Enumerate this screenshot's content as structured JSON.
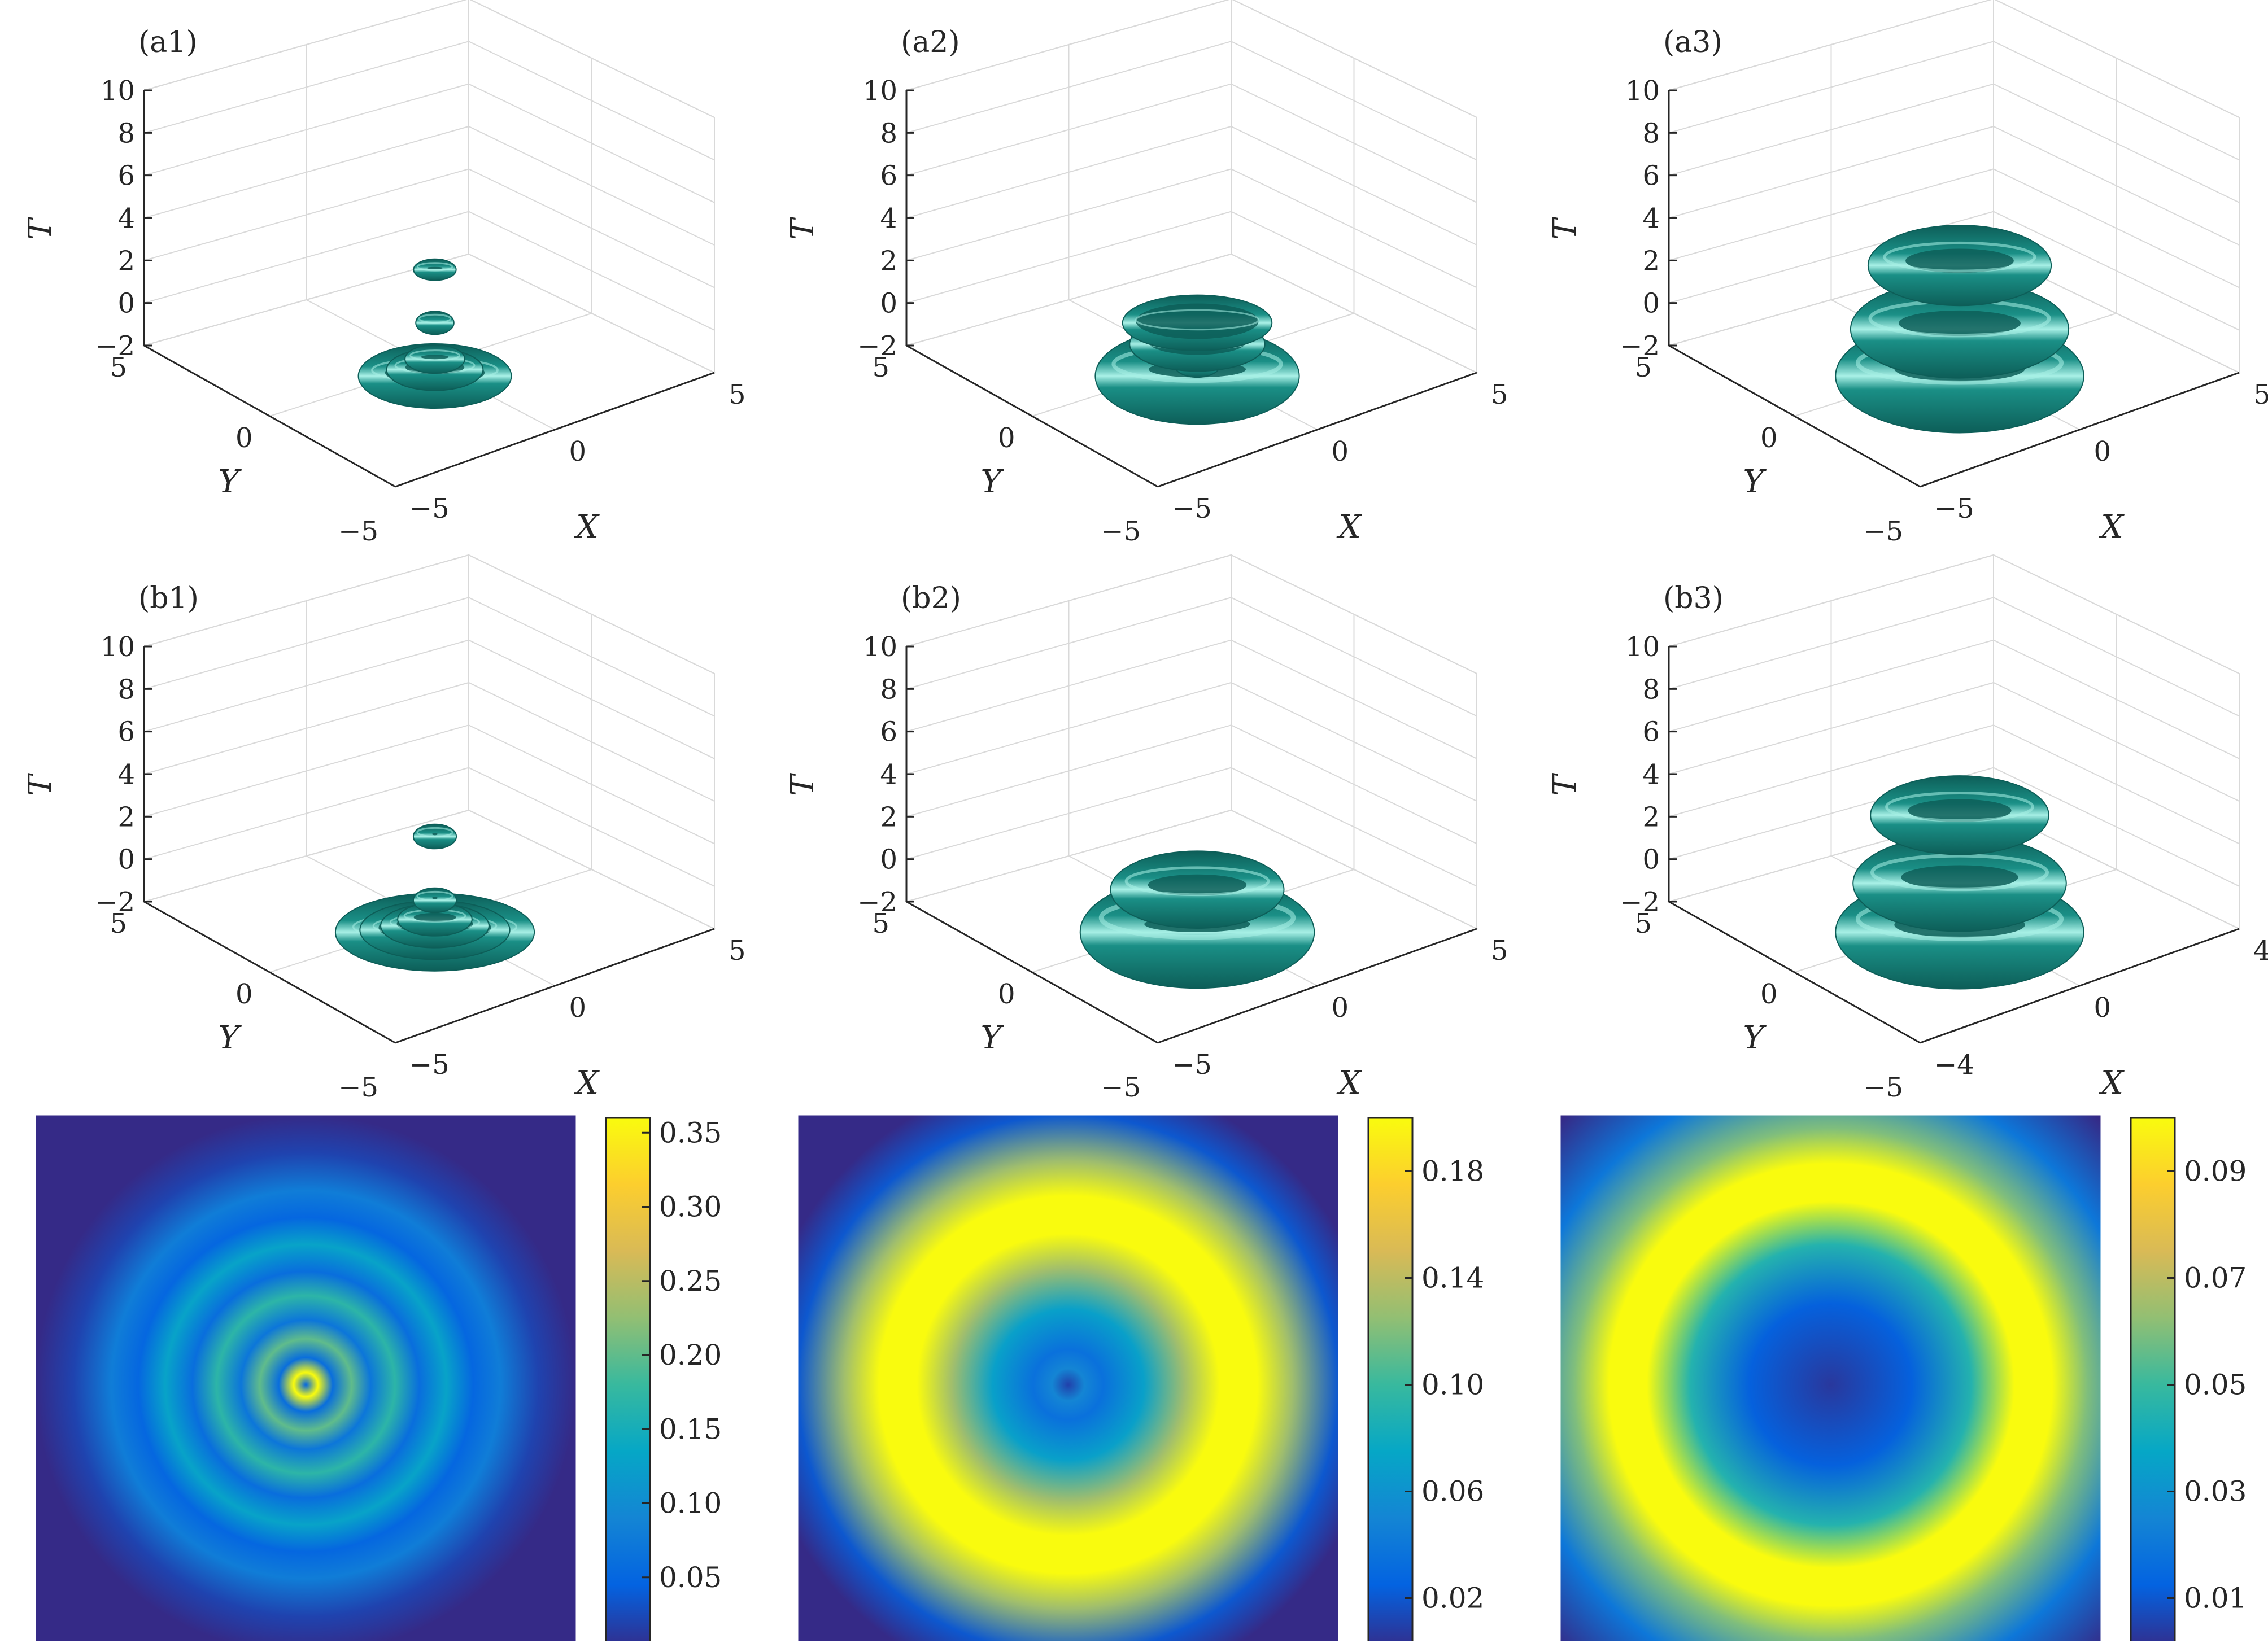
{
  "colors": {
    "surface": "#1a8f86",
    "surface_dark": "#0d5e58",
    "surface_light": "#a8f0e6",
    "grid": "#d9d9d9",
    "axis": "#262626",
    "parula": [
      "#352a87",
      "#0363e1",
      "#1485d4",
      "#06a7c6",
      "#38b99e",
      "#92bf73",
      "#d9ba56",
      "#fcce2e",
      "#f9fb0e"
    ]
  },
  "chart_data": [
    {
      "id": "a1",
      "type": "surface3d",
      "panel_label": "(a1)",
      "xlabel": "X",
      "ylabel": "Y",
      "zlabel": "T",
      "xticks": [
        "−5",
        "0",
        "5"
      ],
      "yticks": [
        "−5",
        "0",
        "5"
      ],
      "zticks": [
        "10",
        "8",
        "6",
        "4",
        "2",
        "0",
        "−2"
      ],
      "zlim": [
        -2,
        10
      ],
      "xlim": [
        -5,
        5
      ],
      "ylim": [
        -5,
        5
      ],
      "grid": true,
      "tori": [
        {
          "r": 2.6,
          "z": 0,
          "tube": 0.5
        },
        {
          "r": 1.6,
          "z": 0.3,
          "tube": 0.35
        },
        {
          "r": 0.9,
          "z": 0.8,
          "tube": 0.3
        },
        {
          "r": 0.4,
          "z": 2.5,
          "tube": 0.35
        },
        {
          "r": 0.6,
          "z": 5,
          "tube": 0.25
        }
      ]
    },
    {
      "id": "a2",
      "type": "surface3d",
      "panel_label": "(a2)",
      "xlabel": "X",
      "ylabel": "Y",
      "zlabel": "T",
      "xticks": [
        "−5",
        "0",
        "5"
      ],
      "yticks": [
        "−5",
        "0",
        "5"
      ],
      "zticks": [
        "10",
        "8",
        "6",
        "4",
        "2",
        "0",
        "−2"
      ],
      "zlim": [
        -2,
        10
      ],
      "xlim": [
        -5,
        5
      ],
      "ylim": [
        -5,
        5
      ],
      "grid": true,
      "tori": [
        {
          "r": 3.1,
          "z": 0,
          "tube": 1.0
        },
        {
          "r": 2.4,
          "z": 1.5,
          "tube": 0.35
        },
        {
          "r": 2.8,
          "z": 2.5,
          "tube": 0.25
        },
        {
          "r": 0.6,
          "z": 0.5,
          "tube": 0.3
        }
      ]
    },
    {
      "id": "a3",
      "type": "surface3d",
      "panel_label": "(a3)",
      "xlabel": "X",
      "ylabel": "Y",
      "zlabel": "T",
      "xticks": [
        "−5",
        "0",
        "5"
      ],
      "yticks": [
        "−5",
        "0",
        "5"
      ],
      "zticks": [
        "10",
        "8",
        "6",
        "4",
        "2",
        "0",
        "−2"
      ],
      "zlim": [
        -2,
        10
      ],
      "xlim": [
        -5,
        5
      ],
      "ylim": [
        -5,
        5
      ],
      "grid": true,
      "tori": [
        {
          "r": 3.9,
          "z": 0,
          "tube": 1.1
        },
        {
          "r": 3.5,
          "z": 2.2,
          "tube": 0.9
        },
        {
          "r": 1.5,
          "z": 2.0,
          "tube": 0.5
        },
        {
          "r": 3.0,
          "z": 5.2,
          "tube": 0.7
        }
      ]
    },
    {
      "id": "b1",
      "type": "surface3d",
      "panel_label": "(b1)",
      "xlabel": "X",
      "ylabel": "Y",
      "zlabel": "T",
      "xticks": [
        "−5",
        "0",
        "5"
      ],
      "yticks": [
        "−5",
        "0",
        "5"
      ],
      "zticks": [
        "10",
        "8",
        "6",
        "4",
        "2",
        "0",
        "−2"
      ],
      "zlim": [
        -2,
        10
      ],
      "xlim": [
        -5,
        5
      ],
      "ylim": [
        -5,
        5
      ],
      "grid": true,
      "tori": [
        {
          "r": 3.6,
          "z": 0,
          "tube": 0.45
        },
        {
          "r": 2.7,
          "z": 0.1,
          "tube": 0.35
        },
        {
          "r": 1.9,
          "z": 0.3,
          "tube": 0.3
        },
        {
          "r": 1.2,
          "z": 0.6,
          "tube": 0.3
        },
        {
          "r": 0.5,
          "z": 1.5,
          "tube": 0.35
        },
        {
          "r": 0.5,
          "z": 4.5,
          "tube": 0.35
        }
      ]
    },
    {
      "id": "b2",
      "type": "surface3d",
      "panel_label": "(b2)",
      "xlabel": "X",
      "ylabel": "Y",
      "zlabel": "T",
      "xticks": [
        "−5",
        "0",
        "5"
      ],
      "yticks": [
        "−5",
        "0",
        "5"
      ],
      "zticks": [
        "10",
        "8",
        "6",
        "4",
        "2",
        "0",
        "−2"
      ],
      "zlim": [
        -2,
        10
      ],
      "xlim": [
        -5,
        5
      ],
      "ylim": [
        -5,
        5
      ],
      "grid": true,
      "tori": [
        {
          "r": 3.5,
          "z": 0,
          "tube": 1.2
        },
        {
          "r": 2.8,
          "z": 2.0,
          "tube": 0.7
        }
      ]
    },
    {
      "id": "b3",
      "type": "surface3d",
      "panel_label": "(b3)",
      "xlabel": "X",
      "ylabel": "Y",
      "zlabel": "T",
      "xticks": [
        "−4",
        "0",
        "4"
      ],
      "yticks": [
        "−5",
        "0",
        "5"
      ],
      "zticks": [
        "10",
        "8",
        "6",
        "4",
        "2",
        "0",
        "−2"
      ],
      "zlim": [
        -2,
        10
      ],
      "xlim": [
        -5,
        5
      ],
      "ylim": [
        -5,
        5
      ],
      "grid": true,
      "tori": [
        {
          "r": 3.9,
          "z": 0,
          "tube": 1.1
        },
        {
          "r": 3.4,
          "z": 2.3,
          "tube": 0.9
        },
        {
          "r": 1.5,
          "z": 2.2,
          "tube": 0.5
        },
        {
          "r": 2.9,
          "z": 5.5,
          "tube": 0.7
        }
      ]
    },
    {
      "id": "c1",
      "type": "heatmap",
      "colorbar_ticks": [
        "0.35",
        "0.30",
        "0.25",
        "0.20",
        "0.15",
        "0.10",
        "0.05"
      ],
      "colorbar_tick_values": [
        0.35,
        0.3,
        0.25,
        0.2,
        0.15,
        0.1,
        0.05
      ],
      "clim": [
        0,
        0.36
      ],
      "rings": [
        {
          "r": 0,
          "v": 0.05
        },
        {
          "r": 0.045,
          "v": 0.36
        },
        {
          "r": 0.1,
          "v": 0.06
        },
        {
          "r": 0.17,
          "v": 0.2
        },
        {
          "r": 0.24,
          "v": 0.07
        },
        {
          "r": 0.33,
          "v": 0.17
        },
        {
          "r": 0.42,
          "v": 0.06
        },
        {
          "r": 0.52,
          "v": 0.13
        },
        {
          "r": 0.62,
          "v": 0.05
        },
        {
          "r": 0.72,
          "v": 0.08
        },
        {
          "r": 0.86,
          "v": 0.02
        },
        {
          "r": 1.0,
          "v": 0.0
        }
      ]
    },
    {
      "id": "c2",
      "type": "heatmap",
      "colorbar_ticks": [
        "0.18",
        "0.14",
        "0.10",
        "0.06",
        "0.02"
      ],
      "colorbar_tick_values": [
        0.18,
        0.14,
        0.1,
        0.06,
        0.02
      ],
      "clim": [
        0,
        0.2
      ],
      "rings": [
        {
          "r": 0,
          "v": 0.01
        },
        {
          "r": 0.06,
          "v": 0.05
        },
        {
          "r": 0.13,
          "v": 0.035
        },
        {
          "r": 0.28,
          "v": 0.07
        },
        {
          "r": 0.43,
          "v": 0.13
        },
        {
          "r": 0.56,
          "v": 0.2
        },
        {
          "r": 0.7,
          "v": 0.2
        },
        {
          "r": 0.83,
          "v": 0.13
        },
        {
          "r": 1.0,
          "v": 0.02
        },
        {
          "r": 1.15,
          "v": 0.0
        }
      ]
    },
    {
      "id": "c3",
      "type": "heatmap",
      "colorbar_ticks": [
        "0.09",
        "0.07",
        "0.05",
        "0.03",
        "0.01"
      ],
      "colorbar_tick_values": [
        0.09,
        0.07,
        0.05,
        0.03,
        0.01
      ],
      "clim": [
        0,
        0.1
      ],
      "rings": [
        {
          "r": 0,
          "v": 0.003
        },
        {
          "r": 0.3,
          "v": 0.012
        },
        {
          "r": 0.52,
          "v": 0.045
        },
        {
          "r": 0.68,
          "v": 0.1
        },
        {
          "r": 0.82,
          "v": 0.1
        },
        {
          "r": 0.95,
          "v": 0.06
        },
        {
          "r": 1.15,
          "v": 0.02
        },
        {
          "r": 1.4,
          "v": 0.0
        }
      ]
    }
  ]
}
